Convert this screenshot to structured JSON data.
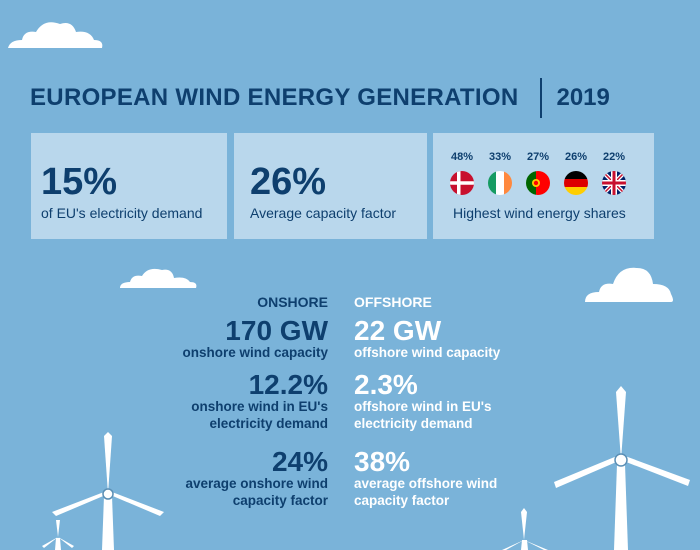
{
  "header": {
    "title": "EUROPEAN WIND ENERGY GENERATION",
    "year": "2019"
  },
  "cards": [
    {
      "value": "15%",
      "label": "of EU's electricity demand"
    },
    {
      "value": "26%",
      "label": "Average capacity factor"
    }
  ],
  "shares": {
    "label": "Highest wind energy shares",
    "items": [
      {
        "country_flag": "denmark-flag-icon",
        "pct": "48%"
      },
      {
        "country_flag": "ireland-flag-icon",
        "pct": "33%"
      },
      {
        "country_flag": "portugal-flag-icon",
        "pct": "27%"
      },
      {
        "country_flag": "germany-flag-icon",
        "pct": "26%"
      },
      {
        "country_flag": "uk-flag-icon",
        "pct": "22%"
      }
    ]
  },
  "onshore": {
    "heading": "ONSHORE",
    "stats": [
      {
        "value": "170 GW",
        "label_lines": [
          "onshore wind capacity"
        ]
      },
      {
        "value": "12.2%",
        "label_lines": [
          "onshore wind in EU's",
          "electricity demand"
        ]
      },
      {
        "value": "24%",
        "label_lines": [
          "average onshore wind",
          "capacity factor"
        ]
      }
    ]
  },
  "offshore": {
    "heading": "OFFSHORE",
    "stats": [
      {
        "value": "22 GW",
        "label_lines": [
          "offshore wind capacity"
        ]
      },
      {
        "value": "2.3%",
        "label_lines": [
          "offshore wind in EU's",
          "electricity demand"
        ]
      },
      {
        "value": "38%",
        "label_lines": [
          "average offshore wind",
          "capacity factor"
        ]
      }
    ]
  },
  "colors": {
    "background": "#7ab3d9",
    "card": "#b9d7ec",
    "text_dark": "#0e3f6e",
    "text_light": "#ffffff"
  }
}
